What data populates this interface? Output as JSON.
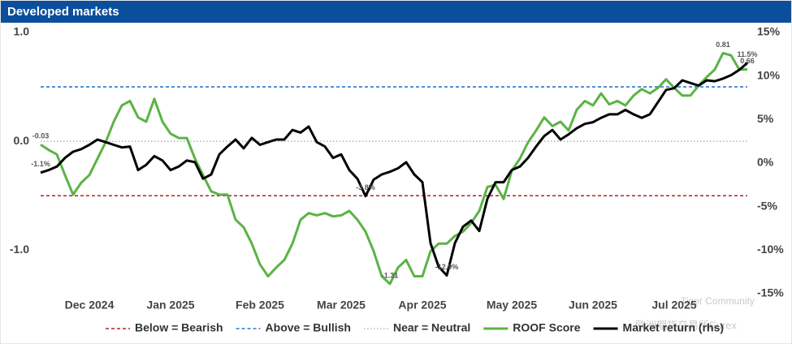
{
  "chart_data": {
    "type": "line",
    "title": "Developed markets",
    "categories": [
      null,
      null,
      null,
      null,
      null,
      null,
      "Dec 2024",
      null,
      null,
      null,
      null,
      null,
      null,
      null,
      null,
      null,
      "Jan 2025",
      null,
      null,
      null,
      null,
      null,
      null,
      null,
      null,
      null,
      null,
      "Feb 2025",
      null,
      null,
      null,
      null,
      null,
      null,
      null,
      null,
      null,
      "Mar 2025",
      null,
      null,
      null,
      null,
      null,
      null,
      null,
      null,
      null,
      "Apr 2025",
      null,
      null,
      null,
      null,
      null,
      null,
      null,
      null,
      null,
      null,
      "May 2025",
      null,
      null,
      null,
      null,
      null,
      null,
      null,
      null,
      null,
      "Jun 2025",
      null,
      null,
      null,
      null,
      null,
      null,
      null,
      null,
      null,
      "Jul 2025",
      null,
      null,
      null,
      null,
      null,
      null,
      null,
      null,
      null
    ],
    "ylim": [
      -1.4,
      1.0
    ],
    "yticks": [
      {
        "value": 1,
        "label": "1.0"
      },
      {
        "value": 0,
        "label": "0.0"
      },
      {
        "value": -1,
        "label": "-1.0"
      }
    ],
    "y2lim": [
      -15,
      15
    ],
    "y2ticks": [
      {
        "value": 15,
        "label": "15%"
      },
      {
        "value": 10,
        "label": "10%"
      },
      {
        "value": 5,
        "label": "5%"
      },
      {
        "value": 0,
        "label": "0%"
      },
      {
        "value": -5,
        "label": "-5%"
      },
      {
        "value": -10,
        "label": "-10%"
      },
      {
        "value": -15,
        "label": "-15%"
      }
    ],
    "reference_lines": [
      {
        "name": "Below = Bearish",
        "value": -0.5,
        "color": "#b22222",
        "style": "dashed"
      },
      {
        "name": "Above = Bullish",
        "value": 0.5,
        "color": "#2a78c8",
        "style": "dashed"
      },
      {
        "name": "Near = Neutral",
        "value": 0,
        "color": "#b8b8b8",
        "style": "dotted"
      }
    ],
    "series": [
      {
        "name": "ROOF Score",
        "color": "#5bb346",
        "values": [
          -0.03,
          -0.08,
          -0.12,
          -0.31,
          -0.49,
          -0.38,
          -0.31,
          -0.16,
          -0.01,
          0.18,
          0.33,
          0.37,
          0.22,
          0.18,
          0.39,
          0.18,
          0.07,
          0.03,
          0.03,
          -0.16,
          -0.31,
          -0.46,
          -0.49,
          -0.49,
          -0.72,
          -0.79,
          -0.94,
          -1.13,
          -1.24,
          -1.16,
          -1.09,
          -0.94,
          -0.72,
          -0.66,
          -0.68,
          -0.66,
          -0.69,
          -0.68,
          -0.64,
          -0.72,
          -0.83,
          -1.01,
          -1.24,
          -1.31,
          -1.16,
          -1.09,
          -1.24,
          -1.24,
          -1.01,
          -0.94,
          -0.94,
          -0.87,
          -0.83,
          -0.75,
          -0.64,
          -0.42,
          -0.4,
          -0.53,
          -0.27,
          -0.16,
          -0.01,
          0.1,
          0.22,
          0.14,
          0.18,
          0.1,
          0.29,
          0.37,
          0.33,
          0.44,
          0.34,
          0.37,
          0.33,
          0.42,
          0.48,
          0.44,
          0.49,
          0.57,
          0.49,
          0.42,
          0.42,
          0.51,
          0.59,
          0.66,
          0.81,
          0.79,
          0.66,
          0.66
        ],
        "value_labels": [
          "-0.03",
          null,
          null,
          null,
          null,
          null,
          null,
          null,
          null,
          null,
          null,
          null,
          null,
          null,
          null,
          null,
          null,
          null,
          null,
          null,
          null,
          null,
          null,
          null,
          null,
          null,
          null,
          null,
          null,
          null,
          null,
          null,
          null,
          null,
          null,
          null,
          null,
          null,
          null,
          null,
          null,
          null,
          null,
          "-1.31",
          null,
          null,
          null,
          null,
          null,
          null,
          null,
          null,
          null,
          null,
          null,
          null,
          null,
          null,
          null,
          null,
          null,
          null,
          null,
          null,
          null,
          null,
          null,
          null,
          null,
          null,
          null,
          null,
          null,
          null,
          null,
          null,
          null,
          null,
          null,
          null,
          null,
          null,
          null,
          null,
          "0.81",
          null,
          null,
          "0.66"
        ]
      },
      {
        "name": "Market return (rhs)",
        "color": "#000000",
        "axis": "y2",
        "values": [
          -1.1,
          -0.8,
          -0.4,
          0.6,
          1.3,
          1.6,
          2.1,
          2.7,
          2.4,
          2.1,
          1.8,
          1.9,
          -0.8,
          -0.2,
          0.8,
          0.3,
          -0.8,
          -0.4,
          0.3,
          0.1,
          -1.8,
          -1.3,
          1.0,
          1.9,
          2.7,
          1.7,
          2.9,
          2.1,
          2.4,
          2.7,
          2.7,
          3.8,
          3.5,
          4.2,
          2.4,
          1.9,
          0.6,
          1.0,
          -0.8,
          -1.8,
          -3.8,
          -1.9,
          -1.3,
          -1.0,
          -0.6,
          0.1,
          -1.3,
          -2.2,
          -9.2,
          -11.9,
          -12.9,
          -9.2,
          -7.3,
          -6.6,
          -7.8,
          -4.1,
          -2.2,
          -2.2,
          -0.8,
          -0.4,
          0.6,
          1.9,
          3.1,
          3.8,
          2.7,
          3.3,
          4.0,
          4.5,
          4.7,
          5.2,
          5.6,
          5.6,
          6.1,
          5.6,
          5.2,
          5.6,
          7.0,
          8.4,
          8.6,
          9.5,
          9.2,
          8.9,
          9.5,
          9.4,
          9.7,
          10.1,
          10.7,
          11.5
        ],
        "value_labels": [
          "-1.1%",
          null,
          null,
          null,
          null,
          null,
          null,
          null,
          null,
          null,
          null,
          null,
          null,
          null,
          null,
          null,
          null,
          null,
          null,
          null,
          null,
          null,
          null,
          null,
          null,
          null,
          null,
          null,
          null,
          null,
          null,
          null,
          null,
          null,
          null,
          null,
          null,
          null,
          null,
          null,
          "-3.8%",
          null,
          null,
          null,
          null,
          null,
          null,
          null,
          null,
          null,
          "-12.9%",
          null,
          null,
          null,
          null,
          null,
          null,
          null,
          null,
          null,
          null,
          null,
          null,
          null,
          null,
          null,
          null,
          null,
          null,
          null,
          null,
          null,
          null,
          null,
          null,
          null,
          null,
          null,
          null,
          null,
          null,
          null,
          null,
          null,
          null,
          null,
          null,
          "11.5%"
        ]
      }
    ],
    "watermark": [
      "Tiger Community",
      "欧洲期货交易所Eurex"
    ]
  }
}
